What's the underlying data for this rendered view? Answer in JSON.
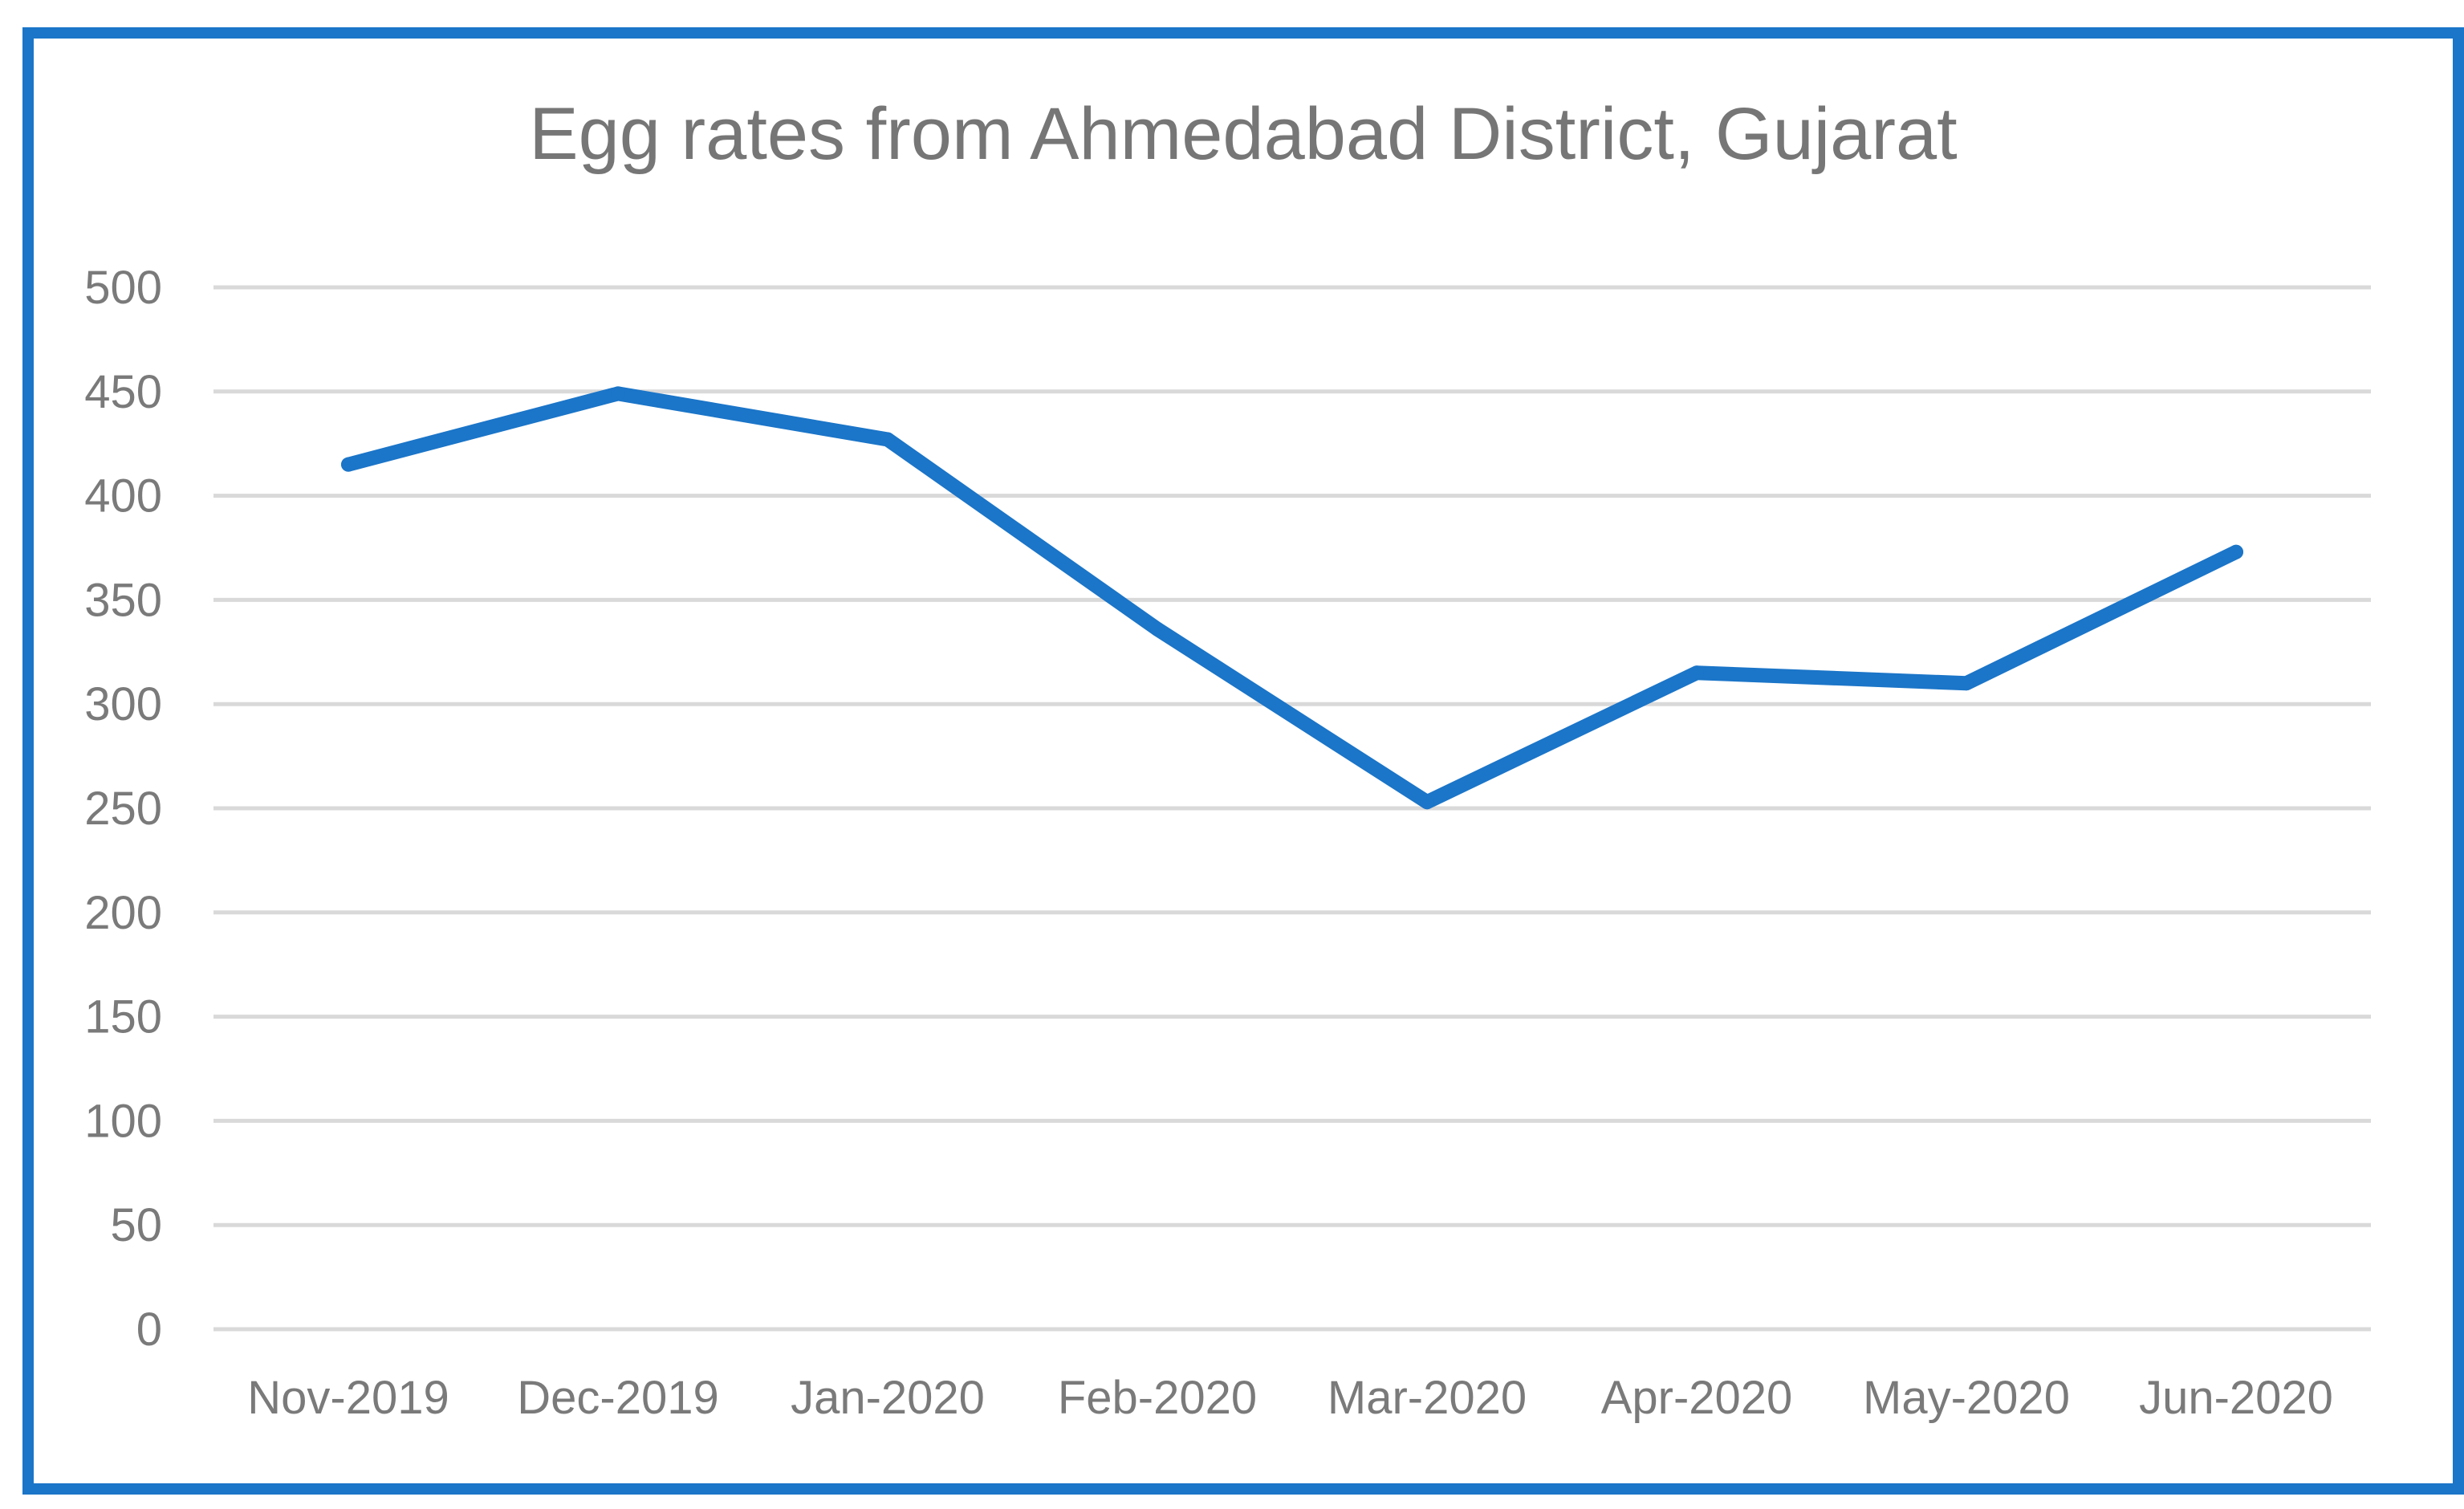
{
  "chart_data": {
    "type": "line",
    "title": "Egg rates from Ahmedabad District, Gujarat",
    "xlabel": "",
    "ylabel": "",
    "categories": [
      "Nov-2019",
      "Dec-2019",
      "Jan-2020",
      "Feb-2020",
      "Mar-2020",
      "Apr-2020",
      "May-2020",
      "Jun-2020"
    ],
    "series": [
      {
        "name": "Egg rates",
        "values": [
          415,
          449,
          427,
          336,
          253,
          315,
          310,
          373
        ],
        "color": "#1b75c8"
      }
    ],
    "ylim": [
      0,
      500
    ],
    "yticks": [
      0,
      50,
      100,
      150,
      200,
      250,
      300,
      350,
      400,
      450,
      500
    ],
    "grid": true,
    "legend": "none"
  },
  "colors": {
    "frame": "#1b75c8",
    "line": "#1b75c8",
    "gridline": "#d9d9d9",
    "text": "#767676"
  }
}
